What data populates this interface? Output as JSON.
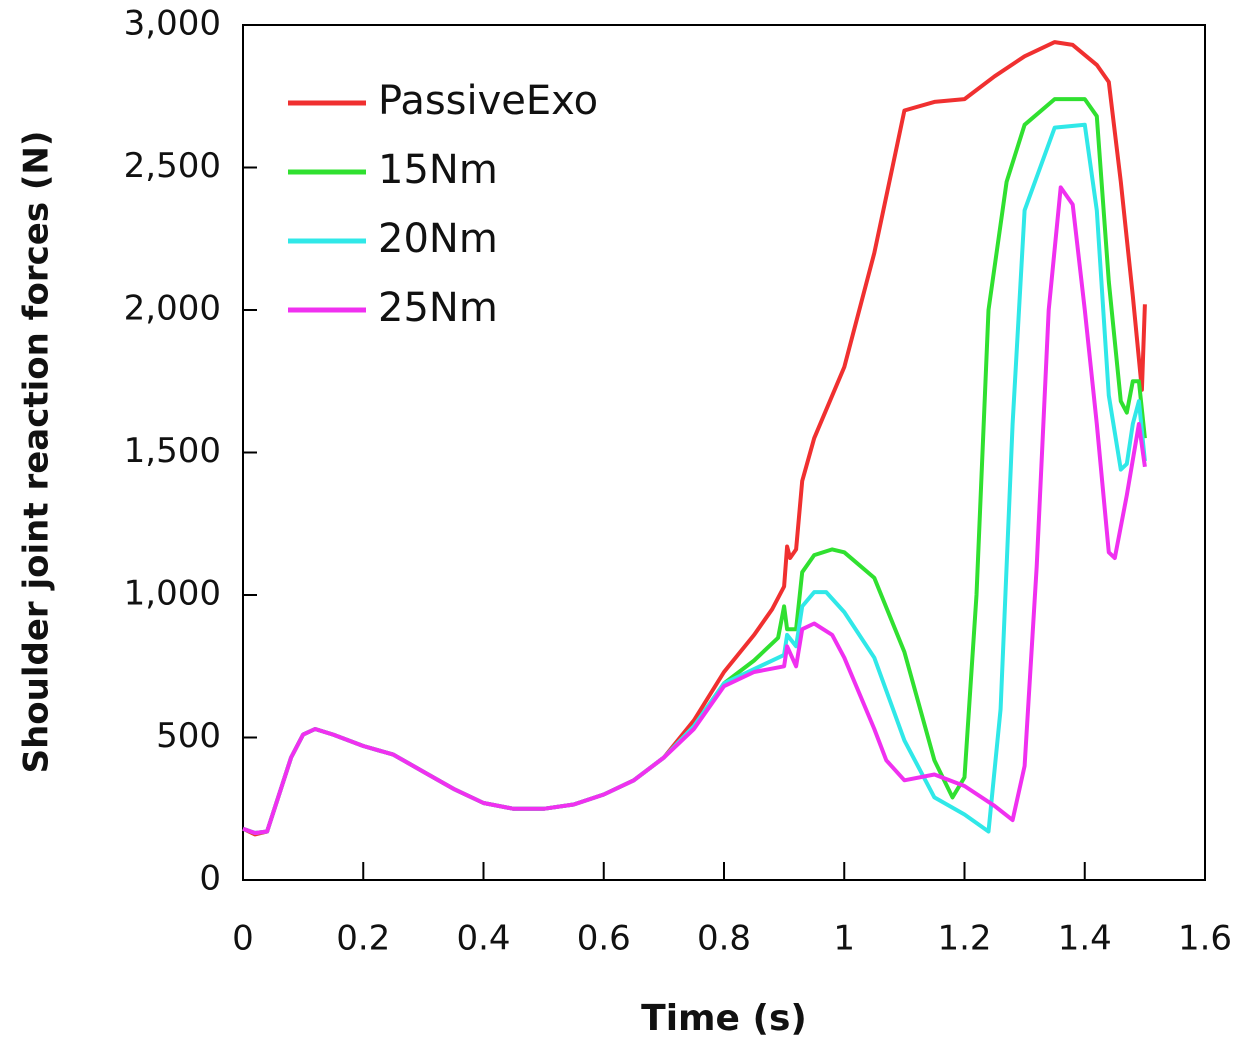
{
  "chart_data": {
    "type": "line",
    "xlabel": "Time (s)",
    "ylabel": "Shoulder joint reaction forces (N)",
    "xlim": [
      0,
      1.6
    ],
    "ylim": [
      0,
      3000
    ],
    "xticks": [
      0,
      0.2,
      0.4,
      0.6,
      0.8,
      1,
      1.2,
      1.4,
      1.6
    ],
    "yticks": [
      0,
      500,
      {
        "value": 1000,
        "label": "1,000"
      },
      {
        "value": 1500,
        "label": "1,500"
      },
      {
        "value": 2000,
        "label": "2,000"
      },
      {
        "value": 2500,
        "label": "2,500"
      },
      {
        "value": 3000,
        "label": "3,000"
      }
    ],
    "legend": "upper left",
    "series": [
      {
        "name": "PassiveExo",
        "color": "#f03030",
        "x": [
          0,
          0.02,
          0.04,
          0.06,
          0.08,
          0.1,
          0.12,
          0.15,
          0.2,
          0.25,
          0.3,
          0.35,
          0.4,
          0.45,
          0.5,
          0.55,
          0.6,
          0.65,
          0.7,
          0.75,
          0.8,
          0.85,
          0.88,
          0.9,
          0.905,
          0.91,
          0.92,
          0.93,
          0.95,
          1.0,
          1.05,
          1.08,
          1.1,
          1.15,
          1.2,
          1.25,
          1.3,
          1.35,
          1.38,
          1.42,
          1.44,
          1.46,
          1.48,
          1.495,
          1.5
        ],
        "values": [
          180,
          160,
          170,
          300,
          430,
          510,
          530,
          510,
          470,
          440,
          380,
          320,
          270,
          250,
          250,
          265,
          300,
          350,
          430,
          560,
          730,
          860,
          950,
          1030,
          1170,
          1130,
          1160,
          1400,
          1550,
          1800,
          2200,
          2500,
          2700,
          2730,
          2740,
          2820,
          2890,
          2940,
          2930,
          2860,
          2800,
          2450,
          2050,
          1720,
          2020
        ]
      },
      {
        "name": "15Nm",
        "color": "#30e030",
        "x": [
          0,
          0.02,
          0.04,
          0.06,
          0.08,
          0.1,
          0.12,
          0.15,
          0.2,
          0.25,
          0.3,
          0.35,
          0.4,
          0.45,
          0.5,
          0.55,
          0.6,
          0.65,
          0.7,
          0.75,
          0.8,
          0.85,
          0.89,
          0.9,
          0.905,
          0.92,
          0.93,
          0.95,
          0.98,
          1.0,
          1.05,
          1.1,
          1.15,
          1.18,
          1.2,
          1.22,
          1.24,
          1.27,
          1.3,
          1.35,
          1.4,
          1.42,
          1.44,
          1.46,
          1.47,
          1.48,
          1.49,
          1.5
        ],
        "values": [
          180,
          165,
          170,
          300,
          430,
          510,
          530,
          510,
          470,
          440,
          380,
          320,
          270,
          250,
          250,
          265,
          300,
          350,
          430,
          540,
          690,
          770,
          850,
          960,
          880,
          880,
          1080,
          1140,
          1160,
          1150,
          1060,
          800,
          420,
          290,
          360,
          1000,
          2000,
          2450,
          2650,
          2740,
          2740,
          2680,
          2100,
          1680,
          1640,
          1750,
          1750,
          1550
        ]
      },
      {
        "name": "20Nm",
        "color": "#30e8e8",
        "x": [
          0,
          0.02,
          0.04,
          0.06,
          0.08,
          0.1,
          0.12,
          0.15,
          0.2,
          0.25,
          0.3,
          0.35,
          0.4,
          0.45,
          0.5,
          0.55,
          0.6,
          0.65,
          0.7,
          0.75,
          0.8,
          0.85,
          0.9,
          0.905,
          0.92,
          0.93,
          0.95,
          0.97,
          1.0,
          1.05,
          1.1,
          1.15,
          1.2,
          1.24,
          1.26,
          1.28,
          1.3,
          1.35,
          1.4,
          1.42,
          1.44,
          1.46,
          1.47,
          1.48,
          1.49,
          1.5
        ],
        "values": [
          180,
          165,
          170,
          300,
          430,
          510,
          530,
          510,
          470,
          440,
          380,
          320,
          270,
          250,
          250,
          265,
          300,
          350,
          430,
          540,
          690,
          740,
          790,
          860,
          820,
          960,
          1010,
          1010,
          940,
          780,
          490,
          290,
          230,
          170,
          600,
          1600,
          2350,
          2640,
          2650,
          2350,
          1700,
          1440,
          1460,
          1600,
          1680,
          1470
        ]
      },
      {
        "name": "25Nm",
        "color": "#f030f0",
        "x": [
          0,
          0.02,
          0.04,
          0.06,
          0.08,
          0.1,
          0.12,
          0.15,
          0.2,
          0.25,
          0.3,
          0.35,
          0.4,
          0.45,
          0.5,
          0.55,
          0.6,
          0.65,
          0.7,
          0.75,
          0.8,
          0.85,
          0.9,
          0.905,
          0.92,
          0.93,
          0.95,
          0.98,
          1.0,
          1.05,
          1.07,
          1.1,
          1.15,
          1.2,
          1.25,
          1.28,
          1.3,
          1.32,
          1.34,
          1.36,
          1.38,
          1.4,
          1.42,
          1.44,
          1.45,
          1.47,
          1.49,
          1.5
        ],
        "values": [
          180,
          165,
          170,
          300,
          430,
          510,
          530,
          510,
          470,
          440,
          380,
          320,
          270,
          250,
          250,
          265,
          300,
          350,
          430,
          530,
          680,
          730,
          750,
          820,
          750,
          880,
          900,
          860,
          780,
          530,
          420,
          350,
          370,
          330,
          260,
          210,
          400,
          1100,
          2000,
          2430,
          2370,
          2000,
          1600,
          1150,
          1130,
          1350,
          1600,
          1450
        ]
      }
    ]
  }
}
